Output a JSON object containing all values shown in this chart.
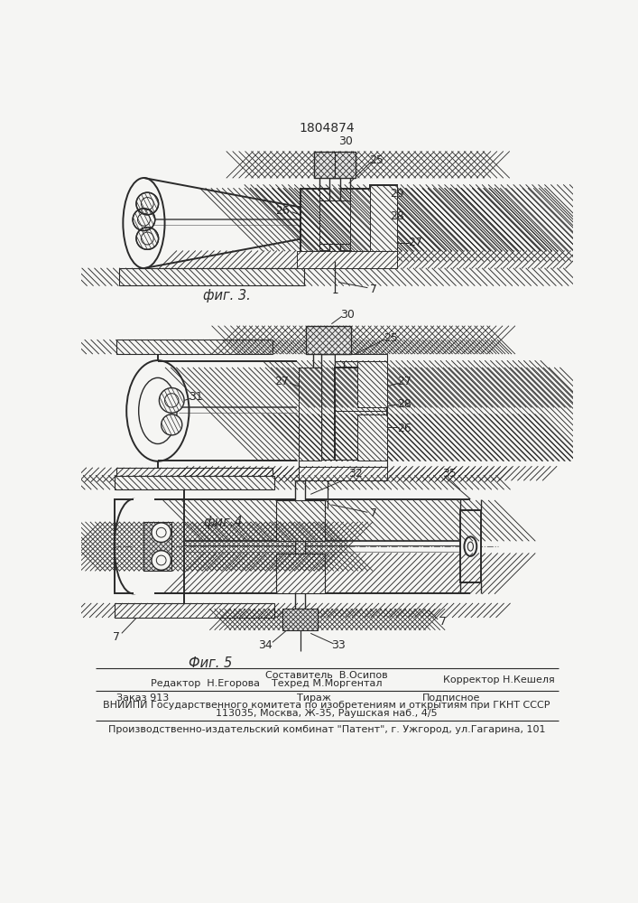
{
  "patent_number": "1804874",
  "fig3_label": "фиг. 3.",
  "fig4_label": "фиг.4",
  "fig5_label": "Фиг. 5",
  "editor_line": "Редактор  Н.Егорова",
  "compiler_label": "Составитель  В.Осипов",
  "techred_label": "Техред М.Моргентал",
  "corrector_label": "Корректор Н.Кешеля",
  "zakaz_line": "Заказ 913",
  "tirazh_line": "Тираж",
  "podpisnoe_line": "Подписное",
  "vniipи_line": "ВНИИПИ Государственного комитета по изобретениям и открытиям при ГКНТ СССР",
  "address_line": "113035, Москва, Ж-35, Раушская наб., 4/5",
  "publisher_line": "Производственно-издательский комбинат \"Патент\", г. Ужгород, ул.Гагарина, 101",
  "bg_color": "#f5f5f3",
  "line_color": "#2a2a2a"
}
